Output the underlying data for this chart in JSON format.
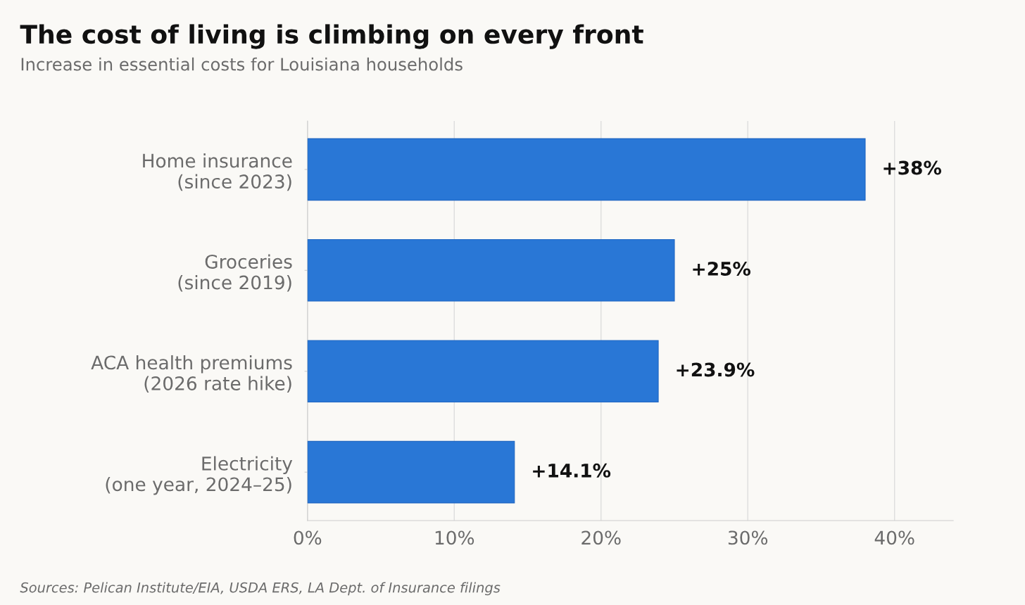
{
  "chart_data": {
    "type": "bar",
    "orientation": "horizontal",
    "title": "The cost of living is climbing on every front",
    "subtitle": "Increase in essential costs for Louisiana households",
    "categories": [
      "Home insurance\n(since 2023)",
      "Groceries\n(since 2019)",
      "ACA health premiums\n(2026 rate hike)",
      "Electricity\n(one year, 2024–25)"
    ],
    "values": [
      38,
      25,
      23.9,
      14.1
    ],
    "value_labels": [
      "+38%",
      "+25%",
      "+23.9%",
      "+14.1%"
    ],
    "color": "#2977d6",
    "xlim": [
      0,
      44
    ],
    "xticks": [
      {
        "value": 0,
        "label": "0%"
      },
      {
        "value": 10,
        "label": "10%"
      },
      {
        "value": 20,
        "label": "20%"
      },
      {
        "value": 30,
        "label": "30%"
      },
      {
        "value": 40,
        "label": "40%"
      }
    ],
    "grid": "x",
    "legend": false,
    "annotations": [
      "Sources: Pelican Institute/EIA, USDA ERS, LA Dept. of Insurance filings"
    ]
  }
}
